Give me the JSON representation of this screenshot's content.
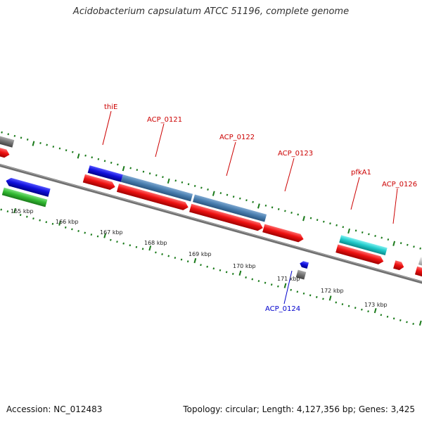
{
  "header": {
    "title": "Acidobacterium capsulatum ATCC 51196, complete genome"
  },
  "footer": {
    "accession": "Accession: NC_012483",
    "summary": "Topology: circular; Length: 4,127,356 bp; Genes: 3,425"
  },
  "ruler_labels": [
    "165 kbp",
    "166 kbp",
    "167 kbp",
    "168 kbp",
    "169 kbp",
    "170 kbp",
    "171 kbp",
    "172 kbp",
    "173 kbp"
  ],
  "gene_labels": {
    "thiE": "thiE",
    "acp0121": "ACP_0121",
    "acp0122": "ACP_0122",
    "acp0123": "ACP_0123",
    "pfkA1": "pfkA1",
    "acp0126": "ACP_0126",
    "acp0124": "ACP_0124"
  },
  "colors": {
    "backbone": "#808080",
    "tick": "#1a7a1a",
    "label_red": "#cc0000",
    "label_blue": "#0000cc",
    "cds_red": "#ee1111",
    "blue": "#1111dd",
    "steelblue": "#4a7fb0",
    "cyan": "#22cccc",
    "green": "#33bb33",
    "gray": "#777777",
    "lightgray": "#c8c8c8"
  }
}
